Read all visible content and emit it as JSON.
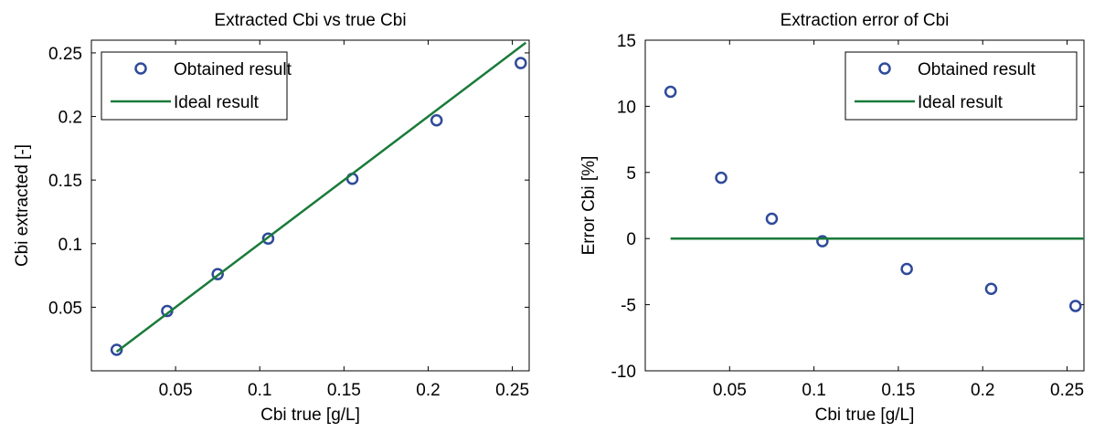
{
  "chart_data": [
    {
      "type": "line",
      "title": "Extracted Cbi vs true Cbi",
      "xlabel": "Cbi true [g/L]",
      "ylabel": "Cbi extracted [-]",
      "xlim": [
        0.0,
        0.26
      ],
      "ylim": [
        0.0,
        0.26
      ],
      "xticks": [
        0.05,
        0.1,
        0.15,
        0.2,
        0.25
      ],
      "xtick_labels": [
        "0.05",
        "0.1",
        "0.15",
        "0.2",
        "0.25"
      ],
      "yticks": [
        0.05,
        0.1,
        0.15,
        0.2,
        0.25
      ],
      "ytick_labels": [
        "0.05",
        "0.1",
        "0.15",
        "0.2",
        "0.25"
      ],
      "grid": false,
      "legend_position": "top-left",
      "series": [
        {
          "name": "Obtained result",
          "kind": "markers",
          "color": "#2e4a9a",
          "x": [
            0.015,
            0.045,
            0.075,
            0.105,
            0.155,
            0.205,
            0.255
          ],
          "y": [
            0.0165,
            0.047,
            0.076,
            0.104,
            0.151,
            0.197,
            0.242
          ]
        },
        {
          "name": "Ideal result",
          "kind": "line",
          "color": "#1a7a3a",
          "x": [
            0.015,
            0.258
          ],
          "y": [
            0.015,
            0.258
          ]
        }
      ]
    },
    {
      "type": "line",
      "title": "Extraction error of Cbi",
      "xlabel": "Cbi true [g/L]",
      "ylabel": "Error Cbi [%]",
      "xlim": [
        0.0,
        0.26
      ],
      "ylim": [
        -10,
        15
      ],
      "xticks": [
        0.05,
        0.1,
        0.15,
        0.2,
        0.25
      ],
      "xtick_labels": [
        "0.05",
        "0.1",
        "0.15",
        "0.2",
        "0.25"
      ],
      "yticks": [
        -10,
        -5,
        0,
        5,
        10,
        15
      ],
      "ytick_labels": [
        "-10",
        "-5",
        "0",
        "5",
        "10",
        "15"
      ],
      "grid": false,
      "legend_position": "top-right",
      "series": [
        {
          "name": "Obtained result",
          "kind": "markers",
          "color": "#2e4a9a",
          "x": [
            0.015,
            0.045,
            0.075,
            0.105,
            0.155,
            0.205,
            0.255
          ],
          "y": [
            11.1,
            4.6,
            1.5,
            -0.2,
            -2.3,
            -3.8,
            -5.1
          ]
        },
        {
          "name": "Ideal result",
          "kind": "line",
          "color": "#1a7a3a",
          "x": [
            0.015,
            0.26
          ],
          "y": [
            0,
            0
          ]
        }
      ]
    }
  ]
}
